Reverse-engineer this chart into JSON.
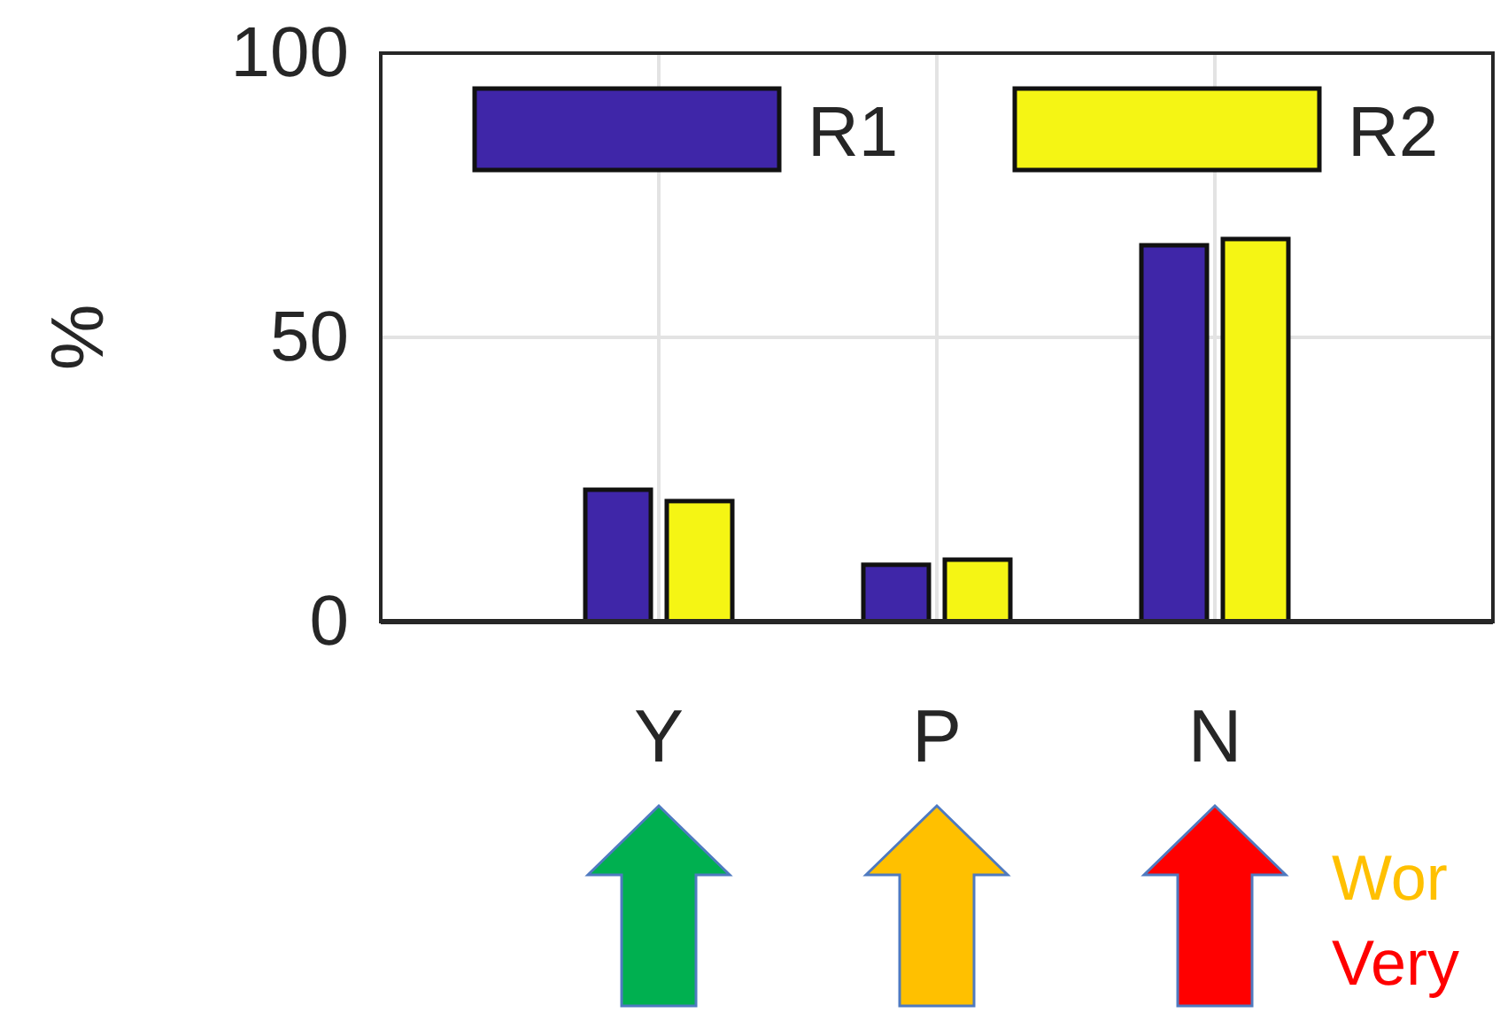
{
  "chart_data": {
    "type": "bar",
    "ylabel": "%",
    "categories": [
      "Y",
      "P",
      "N"
    ],
    "series": [
      {
        "name": "R1",
        "color": "#3f26a8",
        "values": [
          23.2,
          10.0,
          66.2
        ]
      },
      {
        "name": "R2",
        "color": "#f5f514",
        "values": [
          21.2,
          10.9,
          67.3
        ]
      }
    ],
    "ylim": [
      0,
      100
    ],
    "yticks": [
      0,
      50,
      100
    ],
    "grid": true,
    "legend": "top",
    "annotations": [
      "Wor",
      "Very"
    ]
  }
}
